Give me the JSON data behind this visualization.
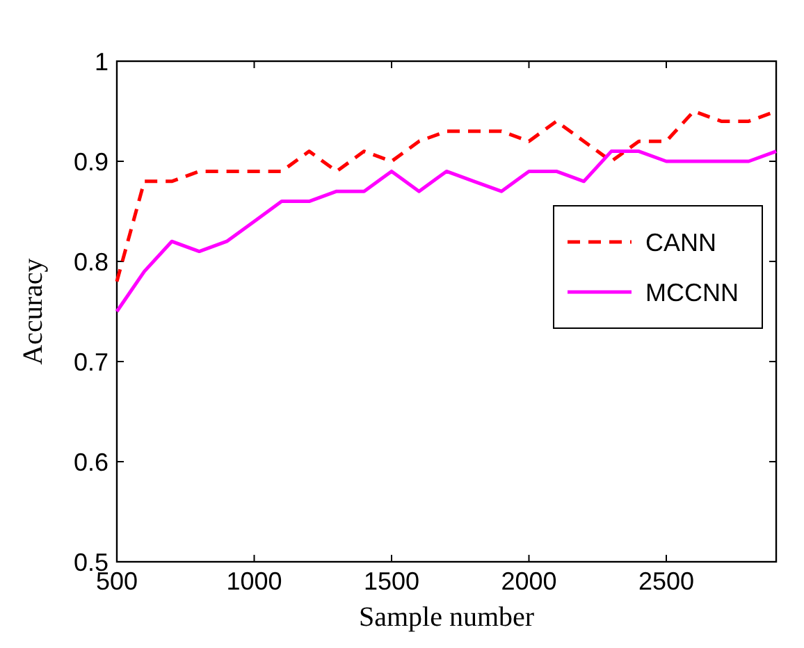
{
  "chart_data": {
    "type": "line",
    "xlabel": "Sample number",
    "ylabel": "Accuracy",
    "x": [
      500,
      600,
      700,
      800,
      900,
      1000,
      1100,
      1200,
      1300,
      1400,
      1500,
      1600,
      1700,
      1800,
      1900,
      2000,
      2100,
      2200,
      2300,
      2400,
      2500,
      2600,
      2700,
      2800,
      2900
    ],
    "series": [
      {
        "name": "CANN",
        "color": "#ff0000",
        "line_style": "dashed",
        "values": [
          0.78,
          0.88,
          0.88,
          0.89,
          0.89,
          0.89,
          0.89,
          0.91,
          0.89,
          0.91,
          0.9,
          0.92,
          0.93,
          0.93,
          0.93,
          0.92,
          0.94,
          0.92,
          0.9,
          0.92,
          0.92,
          0.95,
          0.94,
          0.94,
          0.95
        ]
      },
      {
        "name": "MCCNN",
        "color": "#ff00ff",
        "line_style": "solid",
        "values": [
          0.75,
          0.79,
          0.82,
          0.81,
          0.82,
          0.84,
          0.86,
          0.86,
          0.87,
          0.87,
          0.89,
          0.87,
          0.89,
          0.88,
          0.87,
          0.89,
          0.89,
          0.88,
          0.91,
          0.91,
          0.9,
          0.9,
          0.9,
          0.9,
          0.91
        ]
      }
    ],
    "xlim": [
      500,
      2900
    ],
    "xticks": [
      500,
      1000,
      1500,
      2000,
      2500
    ],
    "ylim": [
      0.5,
      1
    ],
    "yticks": [
      0.5,
      0.6,
      0.7,
      0.8,
      0.9,
      1
    ],
    "grid": false,
    "legend": "right",
    "marker": "none"
  }
}
